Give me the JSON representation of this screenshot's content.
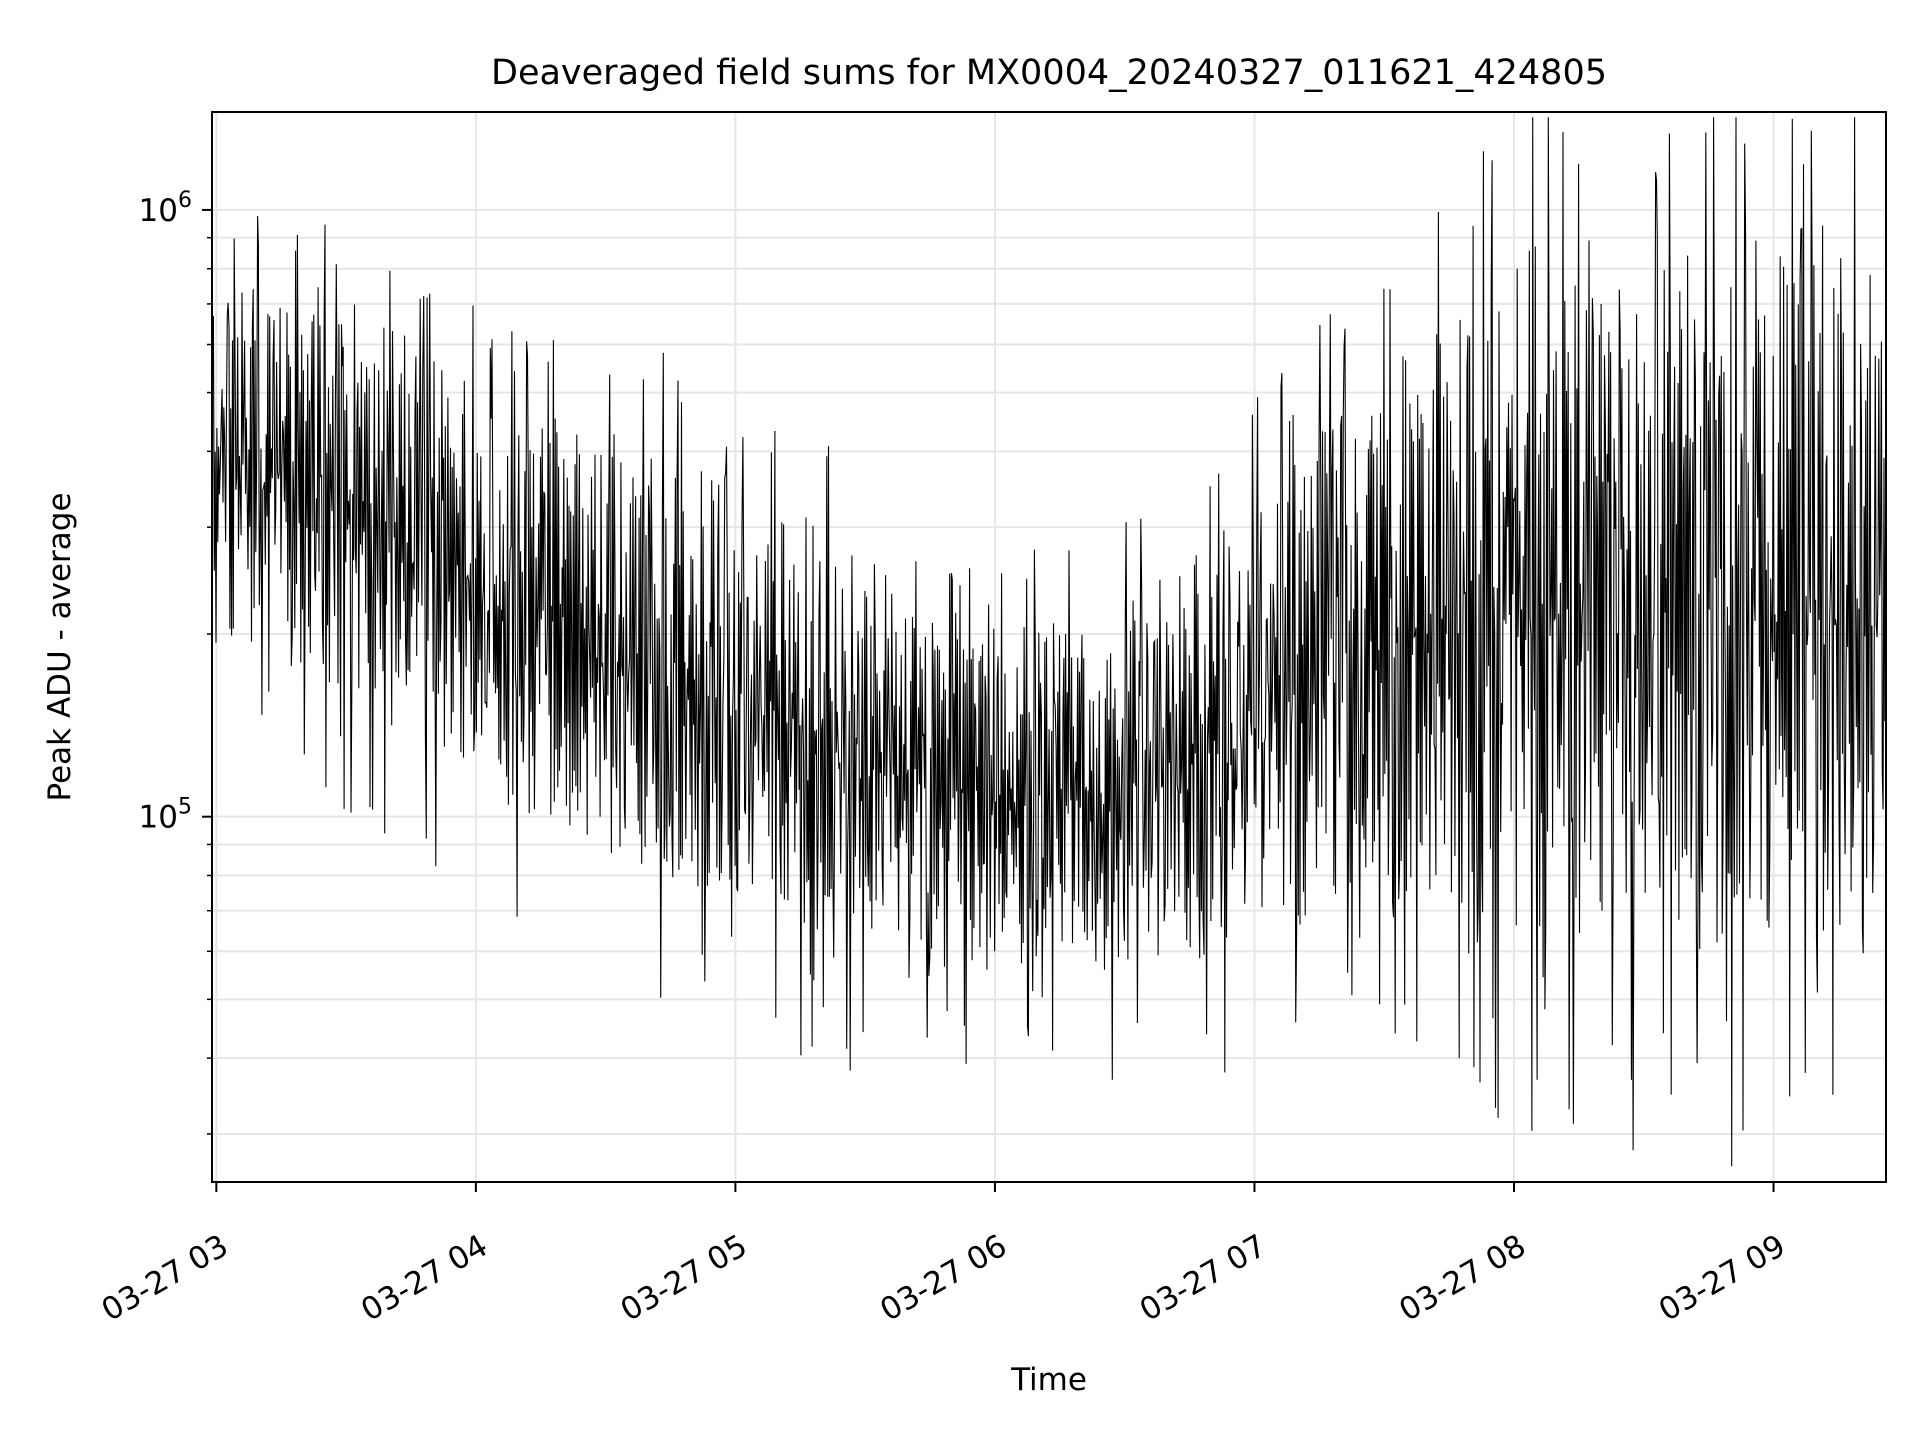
{
  "chart_data": {
    "type": "line",
    "title": "Deaveraged field sums for MX0004_20240327_011621_424805",
    "xlabel": "Time",
    "ylabel": "Peak ADU - average",
    "yscale": "log",
    "ylim": [
      25000,
      1450000
    ],
    "xlim": [
      "2024-03-27 02:59",
      "2024-03-27 09:26"
    ],
    "grid": true,
    "x_tick_labels": [
      "03-27 03",
      "03-27 04",
      "03-27 05",
      "03-27 06",
      "03-27 07",
      "03-27 08",
      "03-27 09"
    ],
    "x_tick_times": [
      "2024-03-27 03:00",
      "2024-03-27 04:00",
      "2024-03-27 05:00",
      "2024-03-27 06:00",
      "2024-03-27 07:00",
      "2024-03-27 08:00",
      "2024-03-27 09:00"
    ],
    "y_tick_values": [
      100000,
      1000000
    ],
    "y_tick_labels": [
      {
        "base": "10",
        "exp": "5"
      },
      {
        "base": "10",
        "exp": "6"
      }
    ],
    "series": [
      {
        "color": "#000000",
        "description": "dense oscillating signal sampled every ~12 s",
        "envelope": [
          {
            "x": "2024-03-27 03:00",
            "low": 190000,
            "high": 800000
          },
          {
            "x": "2024-03-27 03:20",
            "low": 170000,
            "high": 850000
          },
          {
            "x": "2024-03-27 03:40",
            "low": 140000,
            "high": 700000
          },
          {
            "x": "2024-03-27 04:00",
            "low": 110000,
            "high": 560000
          },
          {
            "x": "2024-03-27 04:20",
            "low": 95000,
            "high": 500000
          },
          {
            "x": "2024-03-27 04:40",
            "low": 80000,
            "high": 460000
          },
          {
            "x": "2024-03-27 05:00",
            "low": 70000,
            "high": 400000
          },
          {
            "x": "2024-03-27 05:20",
            "low": 63000,
            "high": 330000
          },
          {
            "x": "2024-03-27 05:40",
            "low": 57000,
            "high": 260000
          },
          {
            "x": "2024-03-27 06:00",
            "low": 55000,
            "high": 220000
          },
          {
            "x": "2024-03-27 06:20",
            "low": 55000,
            "high": 230000
          },
          {
            "x": "2024-03-27 06:40",
            "low": 57000,
            "high": 270000
          },
          {
            "x": "2024-03-27 07:00",
            "low": 62000,
            "high": 380000
          },
          {
            "x": "2024-03-27 07:20",
            "low": 66000,
            "high": 520000
          },
          {
            "x": "2024-03-27 07:40",
            "low": 75000,
            "high": 700000
          },
          {
            "x": "2024-03-27 07:46",
            "low": 70000,
            "high": 900000
          },
          {
            "x": "2024-03-27 08:00",
            "low": 65000,
            "high": 1000000
          },
          {
            "x": "2024-03-27 08:30",
            "low": 62000,
            "high": 1050000
          },
          {
            "x": "2024-03-27 09:00",
            "low": 62000,
            "high": 1080000
          },
          {
            "x": "2024-03-27 09:26",
            "low": 62000,
            "high": 1100000
          }
        ]
      }
    ]
  }
}
